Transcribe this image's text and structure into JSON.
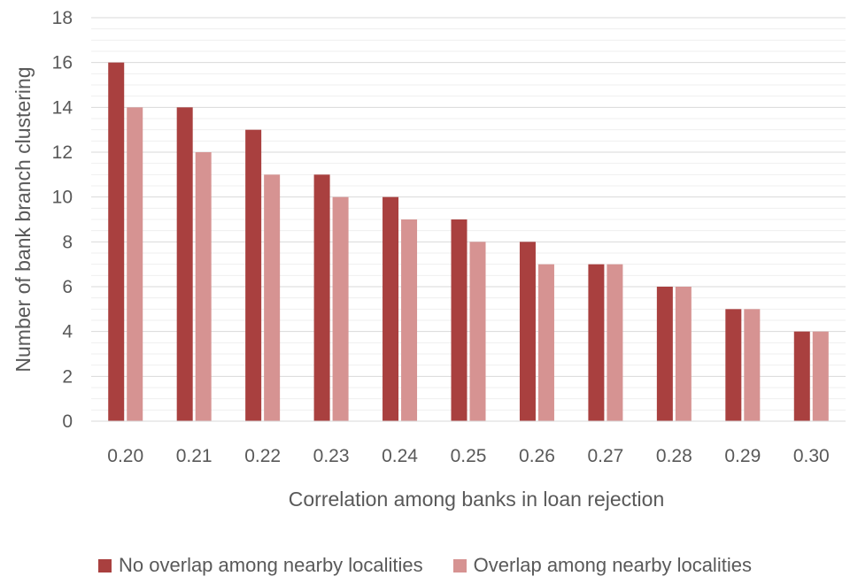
{
  "chart_data": {
    "type": "bar",
    "xlabel": "Correlation among banks in loan rejection",
    "ylabel": "Number  of bank branch clustering",
    "categories": [
      "0.20",
      "0.21",
      "0.22",
      "0.23",
      "0.24",
      "0.25",
      "0.26",
      "0.27",
      "0.28",
      "0.29",
      "0.30"
    ],
    "series": [
      {
        "name": "No overlap among nearby localities",
        "color": "#A9403F",
        "values": [
          16,
          14,
          13,
          11,
          10,
          9,
          8,
          7,
          6,
          5,
          4
        ]
      },
      {
        "name": "Overlap among nearby localities",
        "color": "#D69392",
        "values": [
          14,
          12,
          11,
          10,
          9,
          8,
          7,
          7,
          6,
          5,
          4
        ]
      }
    ],
    "ylim": [
      0,
      18
    ],
    "yticks": [
      0,
      2,
      4,
      6,
      8,
      10,
      12,
      14,
      16,
      18
    ],
    "grid": true,
    "legend_position": "bottom"
  }
}
